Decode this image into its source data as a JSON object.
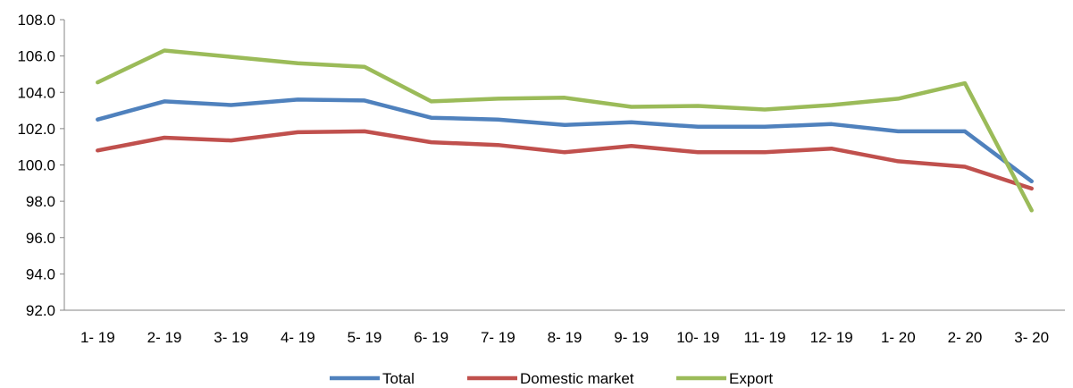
{
  "chart_data": {
    "type": "line",
    "categories": [
      "1- 19",
      "2- 19",
      "3- 19",
      "4- 19",
      "5- 19",
      "6- 19",
      "7- 19",
      "8- 19",
      "9- 19",
      "10- 19",
      "11- 19",
      "12- 19",
      "1- 20",
      "2- 20",
      "3- 20"
    ],
    "series": [
      {
        "name": "Total",
        "color": "#4F81BD",
        "values": [
          102.5,
          103.5,
          103.3,
          103.6,
          103.55,
          102.6,
          102.5,
          102.2,
          102.35,
          102.1,
          102.1,
          102.25,
          101.85,
          101.85,
          99.1
        ]
      },
      {
        "name": "Domestic market",
        "color": "#C0504D",
        "values": [
          100.8,
          101.5,
          101.35,
          101.8,
          101.85,
          101.25,
          101.1,
          100.7,
          101.05,
          100.7,
          100.7,
          100.9,
          100.2,
          99.9,
          98.7
        ]
      },
      {
        "name": "Export",
        "color": "#9BBB59",
        "values": [
          104.55,
          106.3,
          105.95,
          105.6,
          105.4,
          103.5,
          103.65,
          103.7,
          103.2,
          103.25,
          103.05,
          103.3,
          103.65,
          104.5,
          97.5
        ]
      }
    ],
    "y_ticks": [
      "92.0",
      "94.0",
      "96.0",
      "98.0",
      "100.0",
      "102.0",
      "104.0",
      "106.0",
      "108.0"
    ],
    "ylim": [
      92,
      108
    ],
    "xlabel": "",
    "ylabel": "",
    "title": "",
    "grid": false,
    "legend_position": "bottom"
  }
}
